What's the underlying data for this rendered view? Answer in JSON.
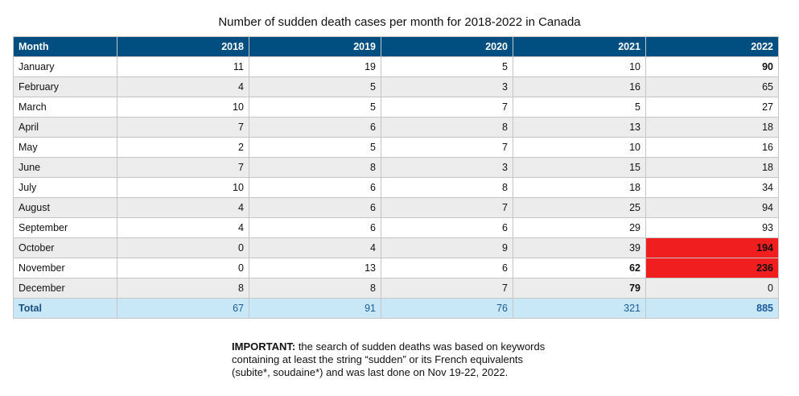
{
  "title": "Number of sudden death cases per month for 2018-2022 in Canada",
  "chart_data": {
    "type": "table",
    "columns": [
      "Month",
      "2018",
      "2019",
      "2020",
      "2021",
      "2022"
    ],
    "rows": [
      {
        "month": "January",
        "values": [
          11,
          19,
          5,
          10,
          90
        ]
      },
      {
        "month": "February",
        "values": [
          4,
          5,
          3,
          16,
          65
        ]
      },
      {
        "month": "March",
        "values": [
          10,
          5,
          7,
          5,
          27
        ]
      },
      {
        "month": "April",
        "values": [
          7,
          6,
          8,
          13,
          18
        ]
      },
      {
        "month": "May",
        "values": [
          2,
          5,
          7,
          10,
          16
        ]
      },
      {
        "month": "June",
        "values": [
          7,
          8,
          3,
          15,
          18
        ]
      },
      {
        "month": "July",
        "values": [
          10,
          6,
          8,
          18,
          34
        ]
      },
      {
        "month": "August",
        "values": [
          4,
          6,
          7,
          25,
          94
        ]
      },
      {
        "month": "September",
        "values": [
          4,
          6,
          6,
          29,
          93
        ]
      },
      {
        "month": "October",
        "values": [
          0,
          4,
          9,
          39,
          194
        ]
      },
      {
        "month": "November",
        "values": [
          0,
          13,
          6,
          62,
          236
        ]
      },
      {
        "month": "December",
        "values": [
          8,
          8,
          7,
          79,
          0
        ]
      }
    ],
    "total": {
      "label": "Total",
      "values": [
        67,
        91,
        76,
        321,
        885
      ]
    },
    "emphasis": {
      "bold_cells": [
        [
          0,
          4
        ],
        [
          10,
          3
        ],
        [
          11,
          3
        ]
      ],
      "highlighted_cells": [
        [
          9,
          4
        ],
        [
          10,
          4
        ]
      ],
      "highlight_color": "#f01e1e"
    }
  },
  "note": {
    "lead": "IMPORTANT:",
    "line1": " the search of sudden deaths was based on keywords",
    "line2": "containing at least the string “sudden” or its French equivalents",
    "line3": "(subite*, soudaine*) and was last done on Nov 19-22, 2022."
  },
  "colors": {
    "header_bg": "#004f80",
    "total_bg": "#c8e8f8",
    "alt_row_bg": "#ececec"
  }
}
